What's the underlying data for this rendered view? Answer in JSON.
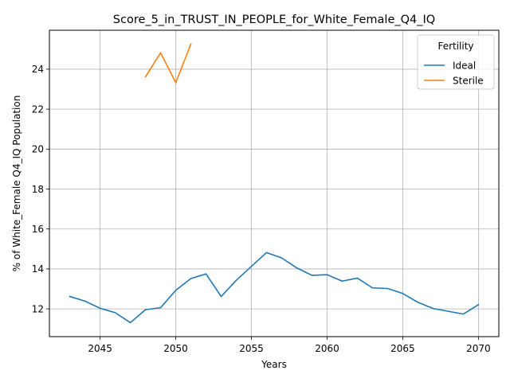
{
  "chart_data": {
    "type": "line",
    "title": "Score_5_in_TRUST_IN_PEOPLE_for_White_Female_Q4_IQ",
    "xlabel": "Years",
    "ylabel": "% of White_Female Q4_IQ Population",
    "xlim": [
      2041.65,
      2071.35
    ],
    "ylim": [
      10.61,
      25.95
    ],
    "xticks": [
      2045,
      2050,
      2055,
      2060,
      2065,
      2070
    ],
    "yticks": [
      12,
      14,
      16,
      18,
      20,
      22,
      24
    ],
    "grid": true,
    "legend": {
      "title": "Fertility",
      "placement": "top-right"
    },
    "series": [
      {
        "name": "Ideal",
        "color": "#1f77b4",
        "x": [
          2043,
          2044,
          2045,
          2046,
          2047,
          2048,
          2049,
          2050,
          2051,
          2052,
          2053,
          2054,
          2055,
          2056,
          2057,
          2058,
          2059,
          2060,
          2061,
          2062,
          2063,
          2064,
          2065,
          2066,
          2067,
          2068,
          2069,
          2070
        ],
        "values": [
          12.62,
          12.39,
          12.03,
          11.81,
          11.31,
          11.96,
          12.06,
          12.93,
          13.52,
          13.75,
          12.62,
          13.43,
          14.13,
          14.82,
          14.55,
          14.05,
          13.68,
          13.71,
          13.39,
          13.54,
          13.05,
          13.02,
          12.77,
          12.33,
          12.02,
          11.88,
          11.74,
          12.21
        ]
      },
      {
        "name": "Sterile",
        "color": "#ff7f0e",
        "x": [
          2048,
          2049,
          2050,
          2051
        ],
        "values": [
          23.62,
          24.82,
          23.32,
          25.26
        ]
      }
    ]
  }
}
